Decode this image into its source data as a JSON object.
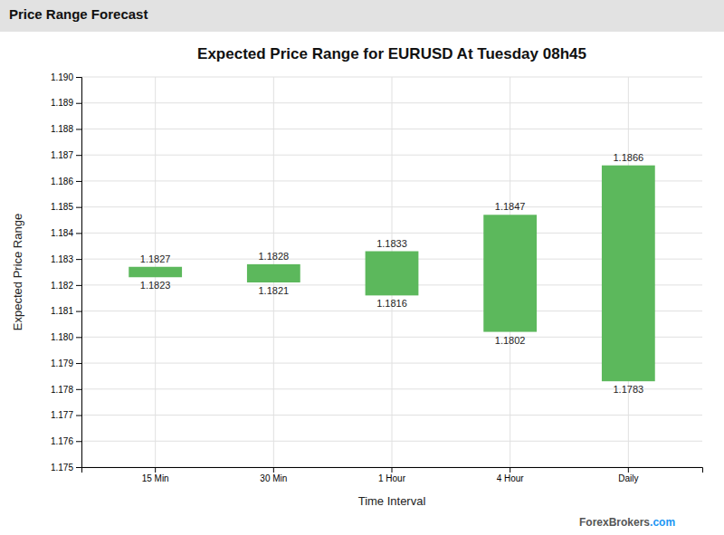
{
  "chart_data": {
    "type": "floating_bar",
    "title": "Expected Price Range for EURUSD At  Tuesday 08h45",
    "subtitle": "Price Range Forecast",
    "x_label": "Time Interval",
    "y_label": "Expected Price Range",
    "categories": [
      "15 Min",
      "30 Min",
      "1 Hour",
      "4 Hour",
      "Daily"
    ],
    "low": [
      1.1823,
      1.1821,
      1.1816,
      1.1802,
      1.1783
    ],
    "high": [
      1.1827,
      1.1828,
      1.1833,
      1.1847,
      1.1866
    ],
    "color": "#5cb85c",
    "ylim": [
      1.175,
      1.19
    ],
    "yticks": [
      1.175,
      1.176,
      1.177,
      1.178,
      1.179,
      {
        "value": 1.18,
        "label": "1.180"
      },
      1.181,
      1.182,
      1.183,
      1.184,
      1.185,
      1.186,
      1.187,
      1.188,
      1.189,
      {
        "value": 1.19,
        "label": "1.190"
      }
    ],
    "grid": true,
    "data_labels": true,
    "annotations": [
      "ForexBrokers",
      ".com"
    ]
  }
}
